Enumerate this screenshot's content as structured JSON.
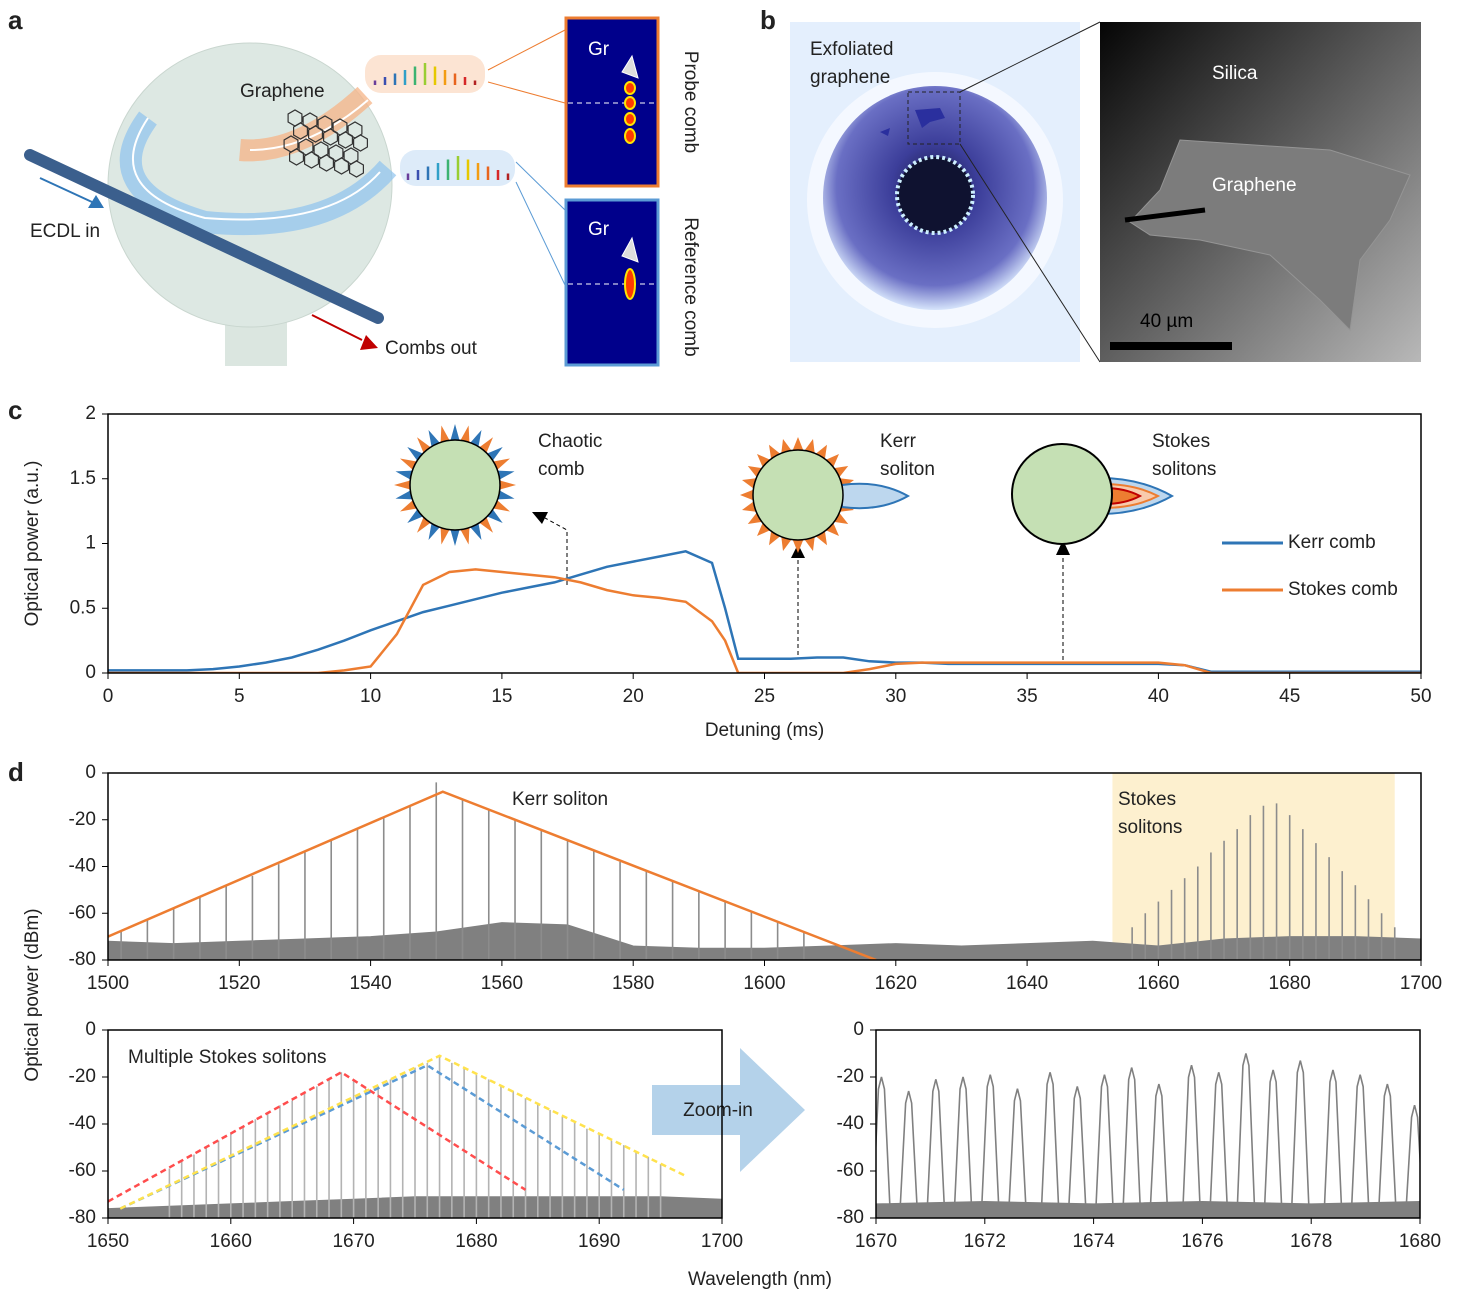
{
  "figure": {
    "panel_labels": [
      "a",
      "b",
      "c",
      "d"
    ],
    "d_y_label": "Optical power (dBm)",
    "d_x_label": "Wavelength (nm)",
    "zoom_label": "Zoom-in"
  },
  "panel_a": {
    "graphene": "Graphene",
    "ecdl": "ECDL in",
    "combs_out": "Combs out",
    "probe_gr": "Gr",
    "reference_gr": "Gr",
    "probe": "Probe comb",
    "reference": "Reference comb"
  },
  "panel_b": {
    "exfoliated": [
      "Exfoliated",
      "graphene"
    ],
    "silica": "Silica",
    "graphene": "Graphene",
    "scale": "40 µm"
  },
  "chart_data": [
    {
      "type": "line",
      "y_label": "Optical power (a.u.)",
      "x_label": "Detuning (ms)",
      "annotations": [
        [
          "Chaotic",
          "comb"
        ],
        [
          "Kerr",
          "soliton"
        ],
        [
          "Stokes",
          "solitons"
        ]
      ],
      "xlim": [
        0,
        50
      ],
      "xticks": [
        0,
        5,
        10,
        15,
        20,
        25,
        30,
        35,
        40,
        45,
        50
      ],
      "ylim": [
        0,
        2
      ],
      "yticks": [
        0,
        0.5,
        1,
        1.5,
        2
      ],
      "legend": "right",
      "x": [
        0,
        1,
        2,
        3,
        4,
        5,
        6,
        7,
        8,
        9,
        10,
        11,
        12,
        13,
        14,
        15,
        16,
        17,
        18,
        19,
        20,
        21,
        22,
        23,
        23.5,
        24,
        25,
        26,
        27,
        28,
        29,
        30,
        31,
        32,
        33,
        34,
        35,
        36,
        37,
        38,
        39,
        40,
        41,
        42,
        43,
        44,
        45,
        46,
        47,
        48,
        49,
        50
      ],
      "series": [
        {
          "name": "Kerr comb",
          "color": "#2e75b6",
          "values": [
            0.02,
            0.02,
            0.02,
            0.02,
            0.03,
            0.05,
            0.08,
            0.12,
            0.18,
            0.25,
            0.33,
            0.4,
            0.47,
            0.52,
            0.57,
            0.62,
            0.66,
            0.7,
            0.76,
            0.82,
            0.86,
            0.9,
            0.94,
            0.85,
            0.5,
            0.11,
            0.11,
            0.11,
            0.12,
            0.12,
            0.09,
            0.08,
            0.08,
            0.07,
            0.07,
            0.07,
            0.07,
            0.07,
            0.07,
            0.07,
            0.07,
            0.07,
            0.06,
            0.01,
            0.01,
            0.01,
            0.01,
            0.01,
            0.01,
            0.01,
            0.01,
            0.01
          ]
        },
        {
          "name": "Stokes comb",
          "color": "#ed7d31",
          "values": [
            0,
            0,
            0,
            0,
            0,
            0,
            0,
            0,
            0,
            0.02,
            0.05,
            0.3,
            0.68,
            0.78,
            0.8,
            0.78,
            0.76,
            0.74,
            0.7,
            0.64,
            0.6,
            0.58,
            0.55,
            0.4,
            0.25,
            0,
            0,
            0,
            0,
            0,
            0.03,
            0.07,
            0.08,
            0.08,
            0.08,
            0.08,
            0.08,
            0.08,
            0.08,
            0.08,
            0.08,
            0.08,
            0.06,
            0,
            0,
            0,
            0,
            0,
            0,
            0,
            0,
            0
          ]
        }
      ]
    },
    {
      "type": "spectrum",
      "annotations": [
        [
          "Kerr soliton"
        ],
        [
          "Stokes",
          "solitons"
        ]
      ],
      "xlim": [
        1500,
        1700
      ],
      "xticks": [
        1500,
        1520,
        1540,
        1560,
        1580,
        1600,
        1620,
        1640,
        1660,
        1680,
        1700
      ],
      "ylim": [
        -80,
        0
      ],
      "yticks": [
        0,
        -20,
        -40,
        -60,
        -80
      ],
      "shaded_range": [
        1653,
        1696
      ],
      "shaded_color": "#fdf0cf",
      "series": [
        {
          "style": "area",
          "color": "#808080",
          "x": [
            1500,
            1510,
            1520,
            1530,
            1540,
            1550,
            1560,
            1570,
            1580,
            1590,
            1600,
            1610,
            1620,
            1630,
            1640,
            1650,
            1660,
            1670,
            1680,
            1690,
            1700
          ],
          "values": [
            -72,
            -73,
            -72,
            -71,
            -70,
            -68,
            -64,
            -65,
            -74,
            -75,
            -75,
            -74,
            -73,
            -74,
            -73,
            -72,
            -74,
            -71,
            -70,
            -70,
            -71
          ]
        },
        {
          "style": "stems",
          "color": "#8c8c8c",
          "x": [
            1502,
            1506,
            1510,
            1514,
            1518,
            1522,
            1526,
            1530,
            1534,
            1538,
            1542,
            1546,
            1550,
            1554,
            1558,
            1562,
            1566,
            1570,
            1574,
            1578,
            1582,
            1586,
            1590,
            1594,
            1598,
            1602,
            1606
          ],
          "values": [
            -68,
            -63,
            -58,
            -53,
            -48,
            -44,
            -39,
            -34,
            -29,
            -24,
            -19,
            -14,
            -4,
            -11,
            -16,
            -20,
            -24,
            -29,
            -33,
            -38,
            -42,
            -46,
            -51,
            -55,
            -59,
            -64,
            -68
          ]
        },
        {
          "style": "stems",
          "color": "#8c8c8c",
          "x": [
            1656,
            1658,
            1660,
            1662,
            1664,
            1666,
            1668,
            1670,
            1672,
            1674,
            1676,
            1678,
            1680,
            1682,
            1684,
            1686,
            1688,
            1690,
            1692,
            1694,
            1696
          ],
          "values": [
            -66,
            -60,
            -55,
            -50,
            -45,
            -40,
            -34,
            -29,
            -24,
            -18,
            -14,
            -13,
            -18,
            -24,
            -30,
            -36,
            -42,
            -48,
            -54,
            -60,
            -66
          ]
        },
        {
          "style": "line",
          "color": "#ed7d31",
          "x": [
            1500,
            1551,
            1617
          ],
          "values": [
            -70,
            -8,
            -80
          ]
        }
      ]
    },
    {
      "type": "spectrum",
      "annotations": [
        [
          "Multiple Stokes solitons"
        ]
      ],
      "xlim": [
        1650,
        1700
      ],
      "xticks": [
        1650,
        1660,
        1670,
        1680,
        1690,
        1700
      ],
      "ylim": [
        -80,
        0
      ],
      "yticks": [
        0,
        -20,
        -40,
        -60,
        -80
      ],
      "series": [
        {
          "style": "area",
          "color": "#808080",
          "x": [
            1650,
            1655,
            1660,
            1665,
            1670,
            1675,
            1680,
            1685,
            1690,
            1695,
            1700
          ],
          "values": [
            -76,
            -75,
            -74,
            -73,
            -72,
            -71,
            -71,
            -71,
            -71,
            -71,
            -72
          ]
        },
        {
          "style": "stems",
          "color": "#b3b3b3",
          "x": [
            1655,
            1656,
            1657,
            1658,
            1659,
            1660,
            1661,
            1662,
            1663,
            1664,
            1665,
            1666,
            1667,
            1668,
            1669,
            1670,
            1671,
            1672,
            1673,
            1674,
            1675,
            1676,
            1677,
            1678,
            1679,
            1680,
            1681,
            1682,
            1683,
            1684,
            1685,
            1686,
            1687,
            1688,
            1689,
            1690,
            1691,
            1692,
            1693,
            1694,
            1695
          ],
          "values": [
            -59,
            -56,
            -53,
            -50,
            -47,
            -44,
            -41,
            -38,
            -35,
            -32,
            -30,
            -27,
            -24,
            -21,
            -18,
            -21,
            -25,
            -24,
            -21,
            -19,
            -16,
            -14,
            -11,
            -14,
            -16,
            -19,
            -21,
            -24,
            -26,
            -29,
            -31,
            -34,
            -37,
            -39,
            -42,
            -44,
            -47,
            -49,
            -52,
            -54,
            -57
          ]
        },
        {
          "style": "dashed",
          "color": "#ff4d4d",
          "x": [
            1650,
            1669,
            1684
          ],
          "values": [
            -73,
            -18,
            -68
          ]
        },
        {
          "style": "dashed",
          "color": "#5b9bd5",
          "x": [
            1651,
            1676,
            1692
          ],
          "values": [
            -76,
            -15,
            -68
          ]
        },
        {
          "style": "dashed",
          "color": "#ffe24d",
          "x": [
            1651,
            1677,
            1697
          ],
          "values": [
            -76,
            -11,
            -62
          ]
        }
      ]
    },
    {
      "type": "spectrum",
      "annotations": [],
      "xlim": [
        1670,
        1680
      ],
      "xticks": [
        1670,
        1672,
        1674,
        1676,
        1678,
        1680
      ],
      "ylim": [
        -80,
        0
      ],
      "yticks": [
        0,
        -20,
        -40,
        -60,
        -80
      ],
      "series": [
        {
          "style": "area",
          "color": "#808080",
          "x": [
            1670,
            1672,
            1674,
            1676,
            1678,
            1680
          ],
          "values": [
            -74,
            -73,
            -74,
            -73,
            -74,
            -73
          ]
        },
        {
          "style": "peaks",
          "color": "#808080",
          "x": [
            1670.1,
            1670.6,
            1671.1,
            1671.6,
            1672.1,
            1672.6,
            1673.2,
            1673.7,
            1674.2,
            1674.7,
            1675.2,
            1675.8,
            1676.3,
            1676.8,
            1677.3,
            1677.8,
            1678.4,
            1678.9,
            1679.4,
            1679.9
          ],
          "values": [
            -20,
            -26,
            -21,
            -20,
            -19,
            -25,
            -18,
            -24,
            -19,
            -16,
            -23,
            -15,
            -18,
            -10,
            -17,
            -13,
            -17,
            -19,
            -23,
            -32
          ]
        }
      ]
    }
  ]
}
